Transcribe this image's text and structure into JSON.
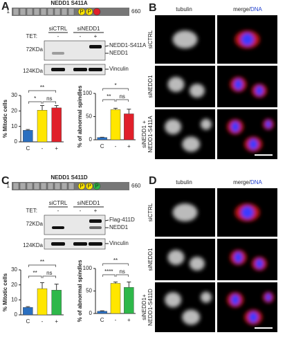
{
  "panels": [
    {
      "letter": "A",
      "title": "NEDD1 S411A",
      "start": "1",
      "end": "660",
      "sites": [
        "P",
        "P",
        ""
      ],
      "site_colors": [
        "#ffe600",
        "#ffe600",
        "#e0202a"
      ],
      "groups": [
        "siCTRL",
        "siNEDD1"
      ],
      "tet_label": "TET:",
      "tet": [
        "-",
        "-",
        "+"
      ],
      "markers": [
        "72KDa",
        "124KDa"
      ],
      "bands": [
        "NEDD1-S411A",
        "NEDD1"
      ],
      "loading": "Vinculin"
    },
    {
      "letter": "C",
      "title": "NEDD1 S411D",
      "start": "1",
      "end": "660",
      "sites": [
        "P",
        "P",
        "P"
      ],
      "site_colors": [
        "#ffe600",
        "#ffe600",
        "#2eb84a"
      ],
      "groups": [
        "siCTRL",
        "siNEDD1"
      ],
      "tet_label": "TET:",
      "tet": [
        "-",
        "-",
        "+"
      ],
      "markers": [
        "72KDa",
        "124KDa"
      ],
      "bands": [
        "Flag-411D",
        "NEDD1"
      ],
      "loading": "Vinculin"
    }
  ],
  "images": [
    {
      "letter": "B",
      "tubulin": "tubulin",
      "merge": "merge/",
      "dna": "DNA",
      "rows": [
        [
          "siCTRL"
        ],
        [
          "siNEDD1"
        ],
        [
          "siNEDD1 +",
          "NEDD1-S411A"
        ]
      ]
    },
    {
      "letter": "D",
      "tubulin": "tubulin",
      "merge": "merge/",
      "dna": "DNA",
      "rows": [
        [
          "siCTRL"
        ],
        [
          "siNEDD1"
        ],
        [
          "siNEDD1+",
          "NEDD1-S411D"
        ]
      ]
    }
  ],
  "chart_data": [
    {
      "type": "bar",
      "y_label": "% Mitotic cells",
      "categories": [
        "C",
        "-",
        "+"
      ],
      "values": [
        7.5,
        20.5,
        22
      ],
      "errors": [
        0.5,
        3,
        1.5
      ],
      "colors": [
        "#2a6fc0",
        "#ffe600",
        "#e0202a"
      ],
      "ylim": [
        0,
        30
      ],
      "yticks": [
        0,
        10,
        20,
        30
      ],
      "significance": [
        "**",
        "*",
        "ns"
      ]
    },
    {
      "type": "bar",
      "y_label": "% of abnormal spindles",
      "categories": [
        "C",
        "-",
        "+"
      ],
      "values": [
        5,
        65,
        56
      ],
      "errors": [
        0.5,
        3,
        10
      ],
      "colors": [
        "#2a6fc0",
        "#ffe600",
        "#e0202a"
      ],
      "ylim": [
        0,
        100
      ],
      "yticks": [
        0,
        50,
        100
      ],
      "significance": [
        "*",
        "**",
        "ns"
      ]
    },
    {
      "type": "bar",
      "y_label": "% Mitotic cells",
      "categories": [
        "C",
        "-",
        "+"
      ],
      "values": [
        5,
        17.5,
        16.5
      ],
      "errors": [
        0.5,
        4,
        4
      ],
      "colors": [
        "#2a6fc0",
        "#ffe600",
        "#2eb84a"
      ],
      "ylim": [
        0,
        30
      ],
      "yticks": [
        0,
        10,
        20,
        30
      ],
      "significance": [
        "**",
        "**",
        "ns"
      ]
    },
    {
      "type": "bar",
      "y_label": "% of abnormal spindles",
      "categories": [
        "C",
        "-",
        "+"
      ],
      "values": [
        5,
        67,
        58
      ],
      "errors": [
        1,
        3,
        12
      ],
      "colors": [
        "#2a6fc0",
        "#ffe600",
        "#2eb84a"
      ],
      "ylim": [
        0,
        100
      ],
      "yticks": [
        0,
        50,
        100
      ],
      "significance": [
        "**",
        "****",
        "ns"
      ]
    }
  ]
}
